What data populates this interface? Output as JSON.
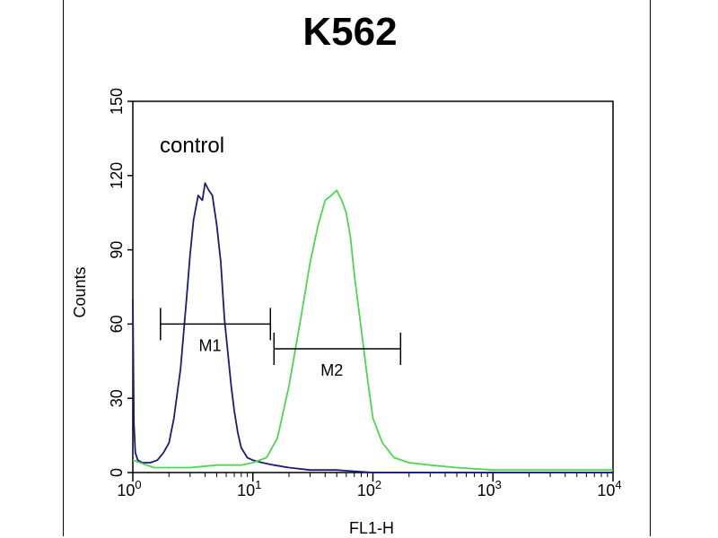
{
  "chart_data": {
    "type": "line",
    "title": "K562",
    "xlabel": "FL1-H",
    "ylabel": "Counts",
    "x_scale": "log",
    "xlim": [
      1,
      10000
    ],
    "ylim": [
      0,
      150
    ],
    "x_ticks": [
      {
        "value": 1,
        "base": "10",
        "exp": "0"
      },
      {
        "value": 10,
        "base": "10",
        "exp": "1"
      },
      {
        "value": 100,
        "base": "10",
        "exp": "2"
      },
      {
        "value": 1000,
        "base": "10",
        "exp": "3"
      },
      {
        "value": 10000,
        "base": "10",
        "exp": "4"
      }
    ],
    "y_ticks": [
      "0",
      "30",
      "60",
      "90",
      "120",
      "150"
    ],
    "grid": false,
    "annotation": "control",
    "series": [
      {
        "color": "#1a1a80",
        "x": [
          1.0,
          1.02,
          1.05,
          1.1,
          1.2,
          1.4,
          1.6,
          1.8,
          2.0,
          2.2,
          2.5,
          2.8,
          3.0,
          3.2,
          3.5,
          3.8,
          4.0,
          4.3,
          4.6,
          5.0,
          5.4,
          5.8,
          6.2,
          6.6,
          7.0,
          7.5,
          8.0,
          9.0,
          10.0,
          12.0,
          15.0,
          20.0,
          30.0,
          50.0,
          100.0,
          200.0,
          500.0,
          1000.0,
          10000.0
        ],
        "y": [
          70,
          20,
          8,
          5,
          4,
          4,
          5,
          8,
          12,
          22,
          42,
          70,
          88,
          102,
          112,
          110,
          117,
          114,
          112,
          100,
          85,
          62,
          48,
          35,
          25,
          16,
          10,
          6,
          5,
          4,
          3,
          2,
          1,
          1,
          0,
          0,
          0,
          0,
          0
        ]
      },
      {
        "color": "#4cd84c",
        "x": [
          1.0,
          1.5,
          2.0,
          3.0,
          5.0,
          8.0,
          10.0,
          13.0,
          16.0,
          20.0,
          25.0,
          30.0,
          35.0,
          40.0,
          45.0,
          50.0,
          55.0,
          60.0,
          65.0,
          70.0,
          80.0,
          90.0,
          100.0,
          120.0,
          150.0,
          200.0,
          300.0,
          500.0,
          1000.0,
          3000.0,
          10000.0
        ],
        "y": [
          5,
          2,
          2,
          2,
          3,
          3,
          4,
          6,
          14,
          35,
          62,
          85,
          100,
          110,
          112,
          114,
          110,
          105,
          95,
          80,
          58,
          38,
          22,
          12,
          6,
          4,
          3,
          2,
          1,
          1,
          1
        ]
      }
    ],
    "markers": [
      {
        "label": "M1",
        "x_start": 1.7,
        "x_end": 14.0,
        "y": 60
      },
      {
        "label": "M2",
        "x_start": 15.0,
        "x_end": 170.0,
        "y": 50
      }
    ]
  }
}
